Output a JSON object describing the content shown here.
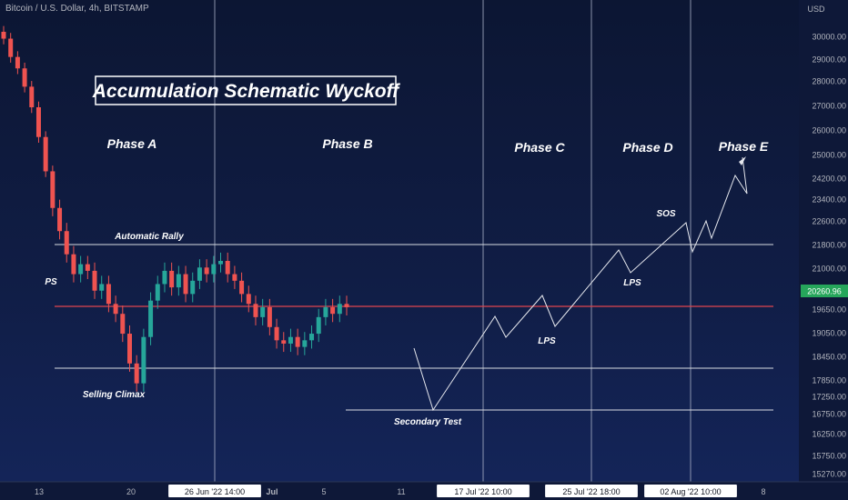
{
  "header": {
    "symbol_title": "Bitcoin / U.S. Dollar, 4h, BITSTAMP"
  },
  "chart_data": {
    "type": "candlestick",
    "title": "Accumulation Schematic Wyckoff",
    "y_unit": "USD",
    "ylim": [
      15000,
      31000
    ],
    "y_ticks": [
      "30000.00",
      "29000.00",
      "28000.00",
      "27000.00",
      "26000.00",
      "25000.00",
      "24200.00",
      "23400.00",
      "22600.00",
      "21800.00",
      "21000.00",
      "20260.96",
      "19650.00",
      "19050.00",
      "18450.00",
      "17850.00",
      "17250.00",
      "16750.00",
      "16250.00",
      "15750.00",
      "15270.00"
    ],
    "x_ticks": [
      "13",
      "20",
      "26 Jun '22   14:00",
      "Jul",
      "5",
      "11",
      "17 Jul '22   10:00",
      "25 Jul '22   18:00",
      "02 Aug '22   10:00",
      "8"
    ],
    "highlighted_x_ticks": [
      2,
      6,
      7,
      8
    ],
    "last_price": "20260.96",
    "phases": [
      "Phase A",
      "Phase B",
      "Phase C",
      "Phase D",
      "Phase E"
    ],
    "annotations": {
      "ps": "PS",
      "automatic_rally": "Automatic Rally",
      "selling_climax": "Selling Climax",
      "secondary_test": "Secondary Test",
      "lps_c": "LPS",
      "lps_d": "LPS",
      "sos": "SOS"
    },
    "levels": {
      "automatic_rally": 21800,
      "mid_support": 19950,
      "selling_climax": 17900,
      "secondary_test": 16850
    },
    "price_path": [
      {
        "y": 30300
      },
      {
        "y": 29500
      },
      {
        "y": 29000
      },
      {
        "y": 28200
      },
      {
        "y": 27300
      },
      {
        "y": 26000
      },
      {
        "y": 24500
      },
      {
        "y": 23300
      },
      {
        "y": 22600
      },
      {
        "y": 21900
      },
      {
        "y": 21300
      },
      {
        "y": 21600
      },
      {
        "y": 21400
      },
      {
        "y": 20800
      },
      {
        "y": 21000
      },
      {
        "y": 20400
      },
      {
        "y": 20100
      },
      {
        "y": 19500
      },
      {
        "y": 18600
      },
      {
        "y": 18000
      },
      {
        "y": 19400
      },
      {
        "y": 20500
      },
      {
        "y": 21000
      },
      {
        "y": 21400
      },
      {
        "y": 20900
      },
      {
        "y": 21300
      },
      {
        "y": 20700
      },
      {
        "y": 21100
      },
      {
        "y": 21500
      },
      {
        "y": 21300
      },
      {
        "y": 21600
      },
      {
        "y": 21700
      },
      {
        "y": 21300
      },
      {
        "y": 21100
      },
      {
        "y": 20700
      },
      {
        "y": 20400
      },
      {
        "y": 20000
      },
      {
        "y": 20300
      },
      {
        "y": 19700
      },
      {
        "y": 19300
      },
      {
        "y": 19200
      },
      {
        "y": 19400
      },
      {
        "y": 19100
      },
      {
        "y": 19300
      },
      {
        "y": 19500
      },
      {
        "y": 20000
      },
      {
        "y": 20300
      },
      {
        "y": 20100
      },
      {
        "y": 20400
      },
      {
        "y": 20300
      }
    ]
  }
}
